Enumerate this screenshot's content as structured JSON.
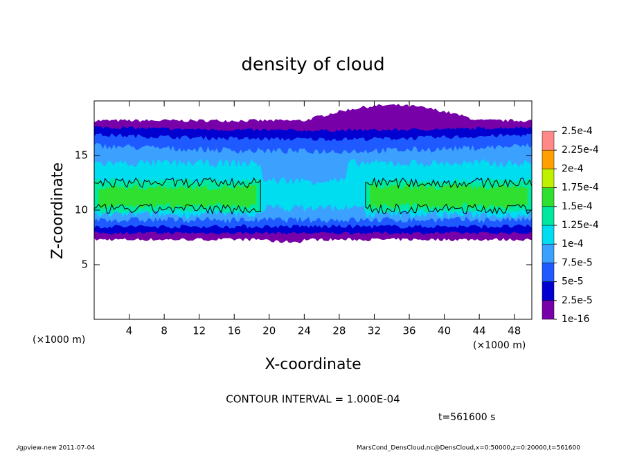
{
  "chart_data": {
    "type": "contour",
    "title": "density of cloud",
    "xlabel": "X-coordinate",
    "ylabel": "Z-coordinate",
    "x_unit": "(×1000 m)",
    "annotation": "CONTOUR INTERVAL = 1.000E-04",
    "time_label": "t=561600 s",
    "footer_left": "./gpview-new  2011-07-04",
    "footer_right": "MarsCond_DensCloud.nc@DensCloud,x=0:50000,z=0:20000,t=561600",
    "xlim": [
      0,
      50
    ],
    "xticks": [
      4,
      8,
      12,
      16,
      20,
      24,
      28,
      32,
      36,
      40,
      44,
      48
    ],
    "ylim": [
      0,
      20
    ],
    "yticks": [
      5,
      10,
      15
    ],
    "levels": [
      {
        "value": 1e-16,
        "label": "1e-16"
      },
      {
        "value": 2.5e-05,
        "label": "2.5e-5"
      },
      {
        "value": 5e-05,
        "label": "5e-5"
      },
      {
        "value": 7.5e-05,
        "label": "7.5e-5"
      },
      {
        "value": 0.0001,
        "label": "1e-4"
      },
      {
        "value": 0.000125,
        "label": "1.25e-4"
      },
      {
        "value": 0.00015,
        "label": "1.5e-4"
      },
      {
        "value": 0.000175,
        "label": "1.75e-4"
      },
      {
        "value": 0.0002,
        "label": "2e-4"
      },
      {
        "value": 0.000225,
        "label": "2.25e-4"
      },
      {
        "value": 0.00025,
        "label": "2.5e-4"
      }
    ],
    "colors": [
      "#7800a8",
      "#0000d0",
      "#1e5aff",
      "#3ca0ff",
      "#00dcf0",
      "#00e8a0",
      "#30e030",
      "#c0f000",
      "#ffa000",
      "#ff8888"
    ]
  }
}
